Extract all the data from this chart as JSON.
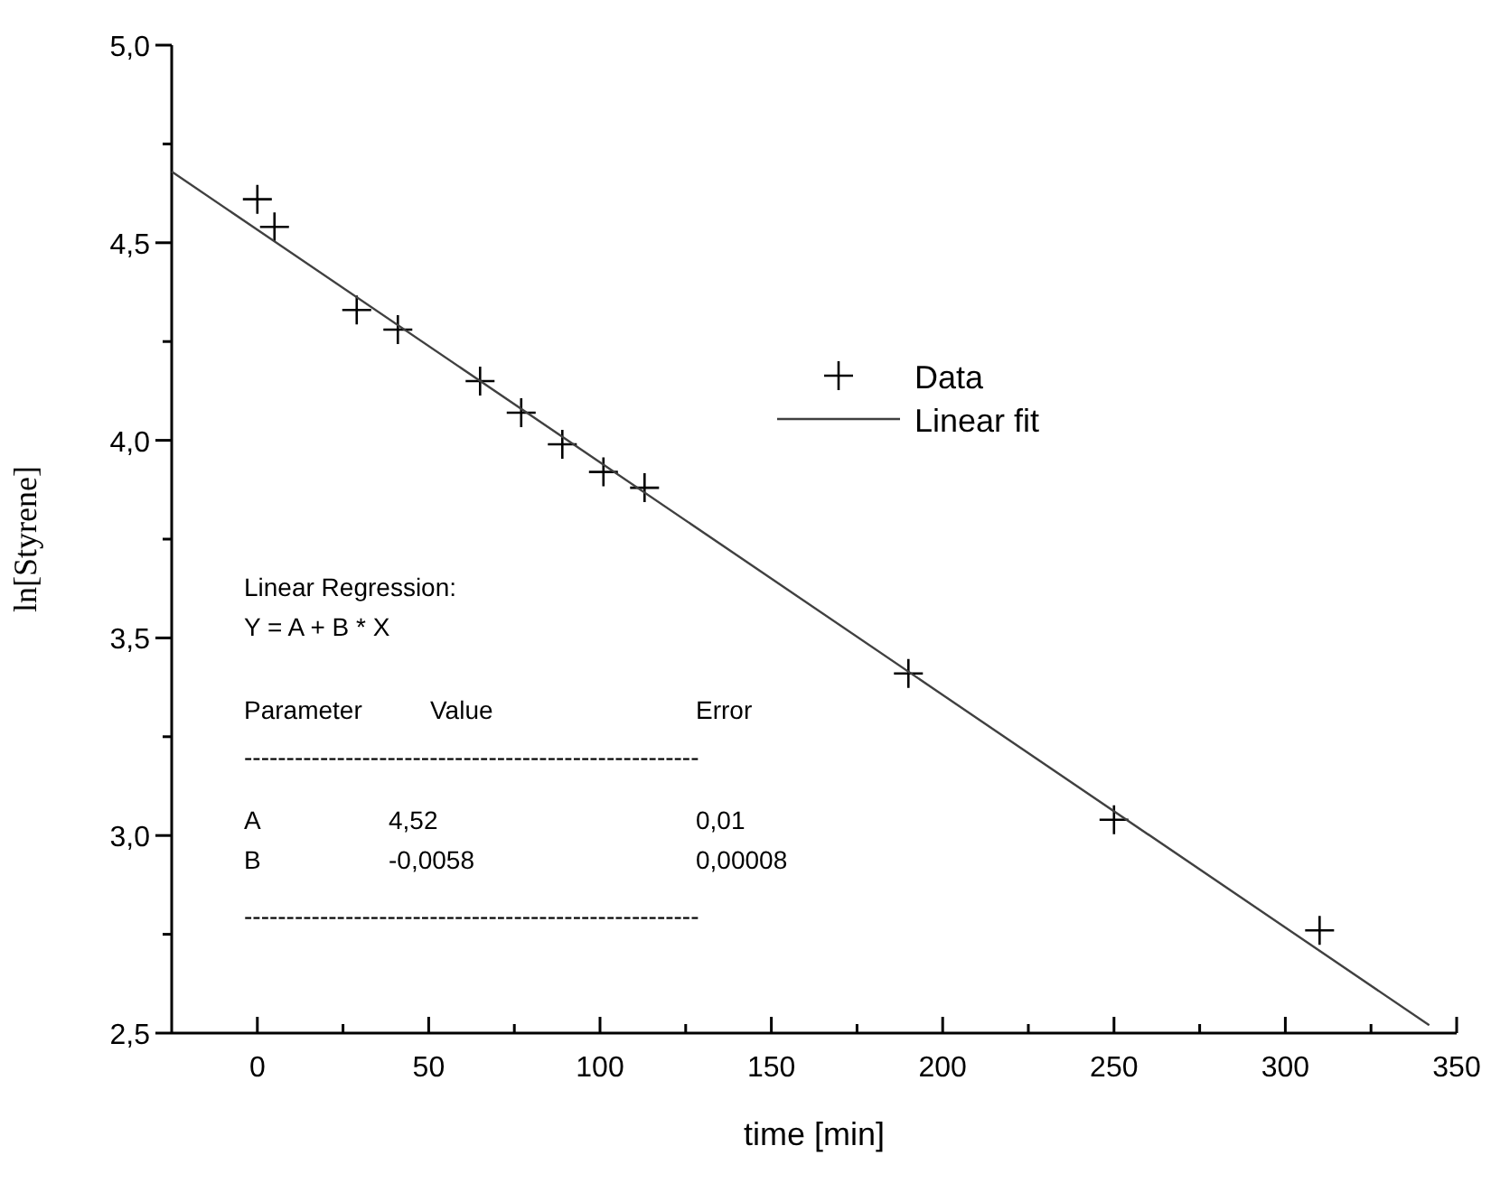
{
  "chart_data": {
    "type": "scatter",
    "xlabel": "time [min]",
    "ylabel": "ln[Styrene]",
    "xlim": [
      -25,
      350
    ],
    "ylim": [
      2.5,
      5.0
    ],
    "xticks": [
      0,
      {
        "value": 25,
        "label": null
      },
      50,
      {
        "value": 75,
        "label": null
      },
      100,
      {
        "value": 125,
        "label": null
      },
      150,
      {
        "value": 175,
        "label": null
      },
      200,
      {
        "value": 225,
        "label": null
      },
      250,
      {
        "value": 275,
        "label": null
      },
      300,
      {
        "value": 325,
        "label": null
      },
      350
    ],
    "yticks": [
      {
        "value": 2.5,
        "label": "2,5"
      },
      {
        "value": 2.75,
        "label": null
      },
      {
        "value": 3.0,
        "label": "3,0"
      },
      {
        "value": 3.25,
        "label": null
      },
      {
        "value": 3.5,
        "label": "3,5"
      },
      {
        "value": 3.75,
        "label": null
      },
      {
        "value": 4.0,
        "label": "4,0"
      },
      {
        "value": 4.25,
        "label": null
      },
      {
        "value": 4.5,
        "label": "4,5"
      },
      {
        "value": 4.75,
        "label": null
      },
      {
        "value": 5.0,
        "label": "5,0"
      }
    ],
    "grid": false,
    "legend": "right",
    "series": [
      {
        "name": "Data",
        "type": "scatter",
        "marker": "cross",
        "color": "#000000",
        "x": [
          0,
          5,
          29,
          41,
          65,
          77,
          89,
          101,
          113,
          190,
          250,
          310
        ],
        "values": [
          4.61,
          4.54,
          4.33,
          4.28,
          4.15,
          4.07,
          3.99,
          3.92,
          3.88,
          3.41,
          3.04,
          2.76
        ]
      },
      {
        "name": "Linear fit",
        "type": "line",
        "marker": "none",
        "line_style": "solid",
        "color": "#404040",
        "x": [
          -25,
          342
        ],
        "values": [
          4.68,
          2.52
        ]
      }
    ],
    "annotations": [
      "Linear Regression:",
      "Y = A + B * X",
      "Parameter\tValue\tError",
      "------------------------------------------------------",
      "A\t4,52\t0,01",
      "B\t-0,0058\t0,00008",
      "------------------------------------------------------"
    ]
  }
}
